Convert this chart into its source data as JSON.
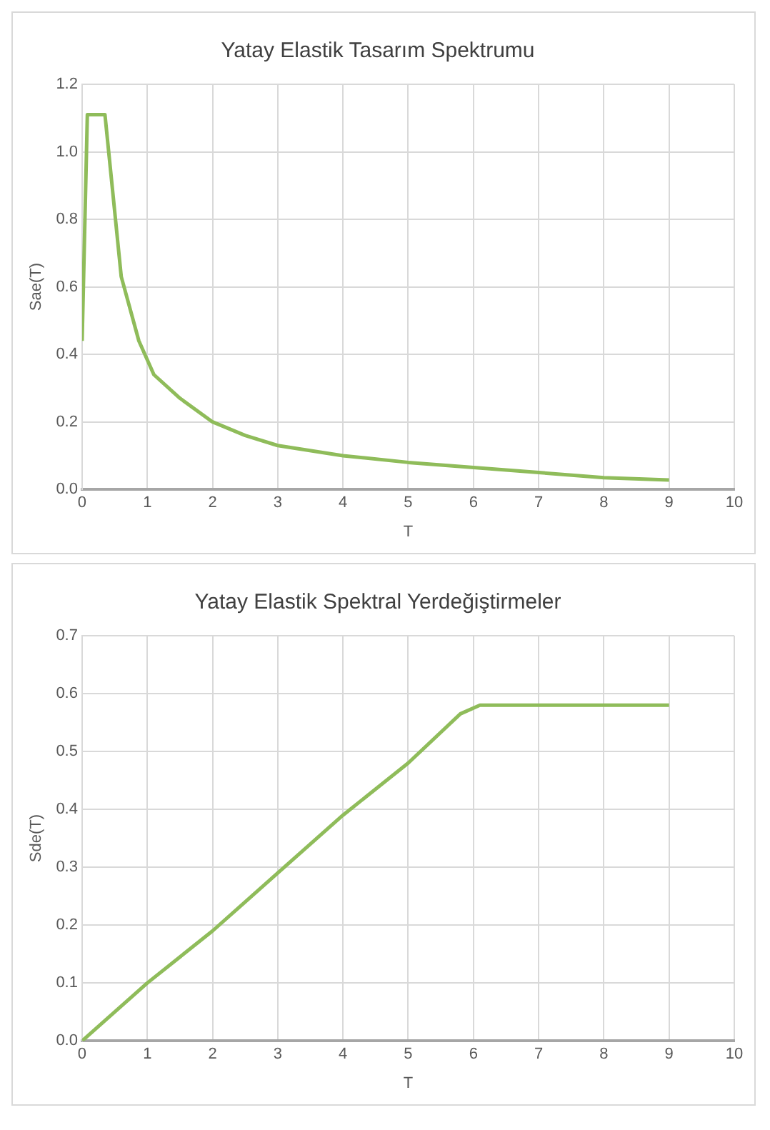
{
  "chart_data": [
    {
      "type": "line",
      "title": "Yatay Elastik Tasarım Spektrumu",
      "xlabel": "T",
      "ylabel": "Sae(T)",
      "x": [
        0,
        0.08,
        0.35,
        0.6,
        0.87,
        1.1,
        1.5,
        2,
        2.5,
        3,
        4,
        5,
        6,
        7,
        8,
        9
      ],
      "series": [
        {
          "color": "#8fbc5a",
          "values": [
            0.44,
            1.11,
            1.11,
            0.63,
            0.44,
            0.34,
            0.27,
            0.2,
            0.16,
            0.13,
            0.1,
            0.08,
            0.065,
            0.05,
            0.035,
            0.028
          ]
        }
      ],
      "xlim": [
        0,
        10
      ],
      "xticks": [
        0,
        1,
        2,
        3,
        4,
        5,
        6,
        7,
        8,
        9,
        10
      ],
      "ylim": [
        0,
        1.2
      ],
      "yticks": [
        {
          "value": 0,
          "label": "0.0"
        },
        {
          "value": 0.2,
          "label": "0.2"
        },
        {
          "value": 0.4,
          "label": "0.4"
        },
        {
          "value": 0.6,
          "label": "0.6"
        },
        {
          "value": 0.8,
          "label": "0.8"
        },
        {
          "value": 1,
          "label": "1.0"
        },
        1.2
      ],
      "grid": true,
      "legend": false,
      "marker": "none",
      "line_style": "solid"
    },
    {
      "type": "line",
      "title": "Yatay Elastik Spektral Yerdeğiştirmeler",
      "xlabel": "T",
      "ylabel": "Sde(T)",
      "x": [
        0,
        0.3,
        1,
        2,
        3,
        4,
        5,
        5.8,
        6.1,
        9
      ],
      "series": [
        {
          "color": "#8fbc5a",
          "values": [
            0,
            0.03,
            0.1,
            0.19,
            0.29,
            0.39,
            0.48,
            0.565,
            0.58,
            0.58
          ]
        }
      ],
      "xlim": [
        0,
        10
      ],
      "xticks": [
        0,
        1,
        2,
        3,
        4,
        5,
        6,
        7,
        8,
        9,
        10
      ],
      "ylim": [
        0,
        0.7
      ],
      "yticks": [
        {
          "value": 0,
          "label": "0.0"
        },
        0.1,
        0.2,
        0.3,
        0.4,
        0.5,
        0.6,
        0.7
      ],
      "grid": true,
      "legend": false,
      "marker": "none",
      "line_style": "solid"
    }
  ]
}
